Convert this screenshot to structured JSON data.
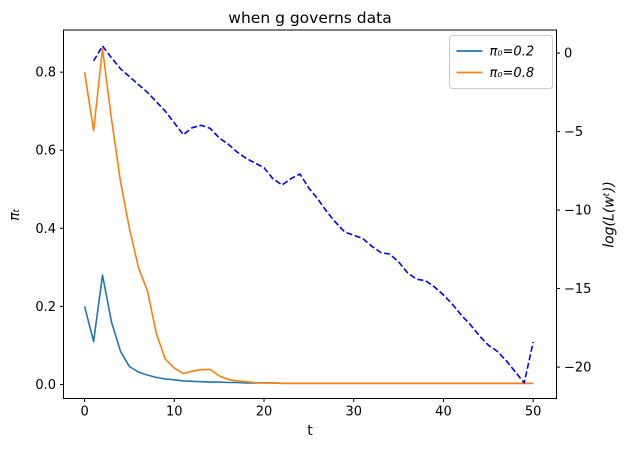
{
  "chart_data": {
    "type": "line",
    "title": "when g governs data",
    "xlabel": "t",
    "ylabel_left": "πₜ",
    "ylabel_right": "log(L(wᵗ))",
    "grid": false,
    "legend_position": "upper right",
    "xlim": [
      -2.35,
      52.6
    ],
    "ylim_left": [
      -0.036,
      0.908
    ],
    "ylim_right": [
      -22.0,
      1.47
    ],
    "x_ticks": {
      "values": [
        0,
        10,
        20,
        30,
        40,
        50
      ],
      "labels": [
        "0",
        "10",
        "20",
        "30",
        "40",
        "50"
      ]
    },
    "y_left_ticks": {
      "values": [
        0.0,
        0.2,
        0.4,
        0.6,
        0.8
      ],
      "labels": [
        "0.0",
        "0.2",
        "0.4",
        "0.6",
        "0.8"
      ]
    },
    "y_right_ticks": {
      "values": [
        0,
        -5,
        -10,
        -15,
        -20
      ],
      "labels": [
        "0",
        "−5",
        "−10",
        "−15",
        "−20"
      ]
    },
    "colors": {
      "c0_blue": "#1f77b4",
      "c1_orange": "#ff7f0e",
      "dashed_blue": "#0000ff",
      "legend_border": "#cccccc",
      "axis": "#000000"
    },
    "series": [
      {
        "id": "pi0-02",
        "name": "π₀=0.2",
        "axis": "left",
        "color": "#1f77b4",
        "style": "solid",
        "in_legend": true,
        "x": [
          0,
          1,
          2,
          3,
          4,
          5,
          6,
          7,
          8,
          9,
          10,
          11,
          12,
          13,
          14,
          15,
          16,
          17,
          18,
          19,
          20,
          21,
          22,
          23,
          24,
          25,
          26,
          27,
          28,
          29,
          30,
          31,
          32,
          33,
          34,
          35,
          36,
          37,
          38,
          39,
          40,
          41,
          42,
          43,
          44,
          45,
          46,
          47,
          48,
          49,
          50
        ],
        "y": [
          0.2,
          0.11,
          0.28,
          0.16,
          0.085,
          0.046,
          0.032,
          0.024,
          0.018,
          0.014,
          0.012,
          0.009,
          0.008,
          0.007,
          0.006,
          0.006,
          0.005,
          0.005,
          0.004,
          0.004,
          0.004,
          0.004,
          0.003,
          0.003,
          0.003,
          0.003,
          0.003,
          0.003,
          0.003,
          0.003,
          0.003,
          0.003,
          0.003,
          0.003,
          0.003,
          0.003,
          0.003,
          0.003,
          0.003,
          0.003,
          0.003,
          0.003,
          0.003,
          0.003,
          0.003,
          0.003,
          0.003,
          0.003,
          0.003,
          0.003,
          0.003
        ]
      },
      {
        "id": "pi0-08",
        "name": "π₀=0.8",
        "axis": "left",
        "color": "#ff7f0e",
        "style": "solid",
        "in_legend": true,
        "x": [
          0,
          1,
          2,
          3,
          4,
          5,
          6,
          7,
          8,
          9,
          10,
          11,
          12,
          13,
          14,
          15,
          16,
          17,
          18,
          19,
          20,
          21,
          22,
          23,
          24,
          25,
          26,
          27,
          28,
          29,
          30,
          31,
          32,
          33,
          34,
          35,
          36,
          37,
          38,
          39,
          40,
          41,
          42,
          43,
          44,
          45,
          46,
          47,
          48,
          49,
          50
        ],
        "y": [
          0.8,
          0.65,
          0.86,
          0.68,
          0.52,
          0.4,
          0.3,
          0.24,
          0.13,
          0.065,
          0.042,
          0.028,
          0.034,
          0.038,
          0.038,
          0.022,
          0.013,
          0.009,
          0.007,
          0.005,
          0.004,
          0.004,
          0.003,
          0.003,
          0.003,
          0.003,
          0.003,
          0.003,
          0.003,
          0.003,
          0.003,
          0.003,
          0.003,
          0.003,
          0.003,
          0.003,
          0.003,
          0.003,
          0.003,
          0.003,
          0.003,
          0.003,
          0.003,
          0.003,
          0.003,
          0.003,
          0.003,
          0.003,
          0.003,
          0.003,
          0.003
        ]
      },
      {
        "id": "log-likelihood",
        "name": "log(L(wᵗ))",
        "axis": "right",
        "color": "#0000ff",
        "style": "dashed",
        "in_legend": false,
        "x": [
          1,
          2,
          3,
          4,
          5,
          6,
          7,
          8,
          9,
          10,
          11,
          12,
          13,
          14,
          15,
          16,
          17,
          18,
          19,
          20,
          21,
          22,
          23,
          24,
          25,
          26,
          27,
          28,
          29,
          30,
          31,
          32,
          33,
          34,
          35,
          36,
          37,
          38,
          39,
          40,
          41,
          42,
          43,
          44,
          45,
          46,
          47,
          48,
          49,
          50
        ],
        "y": [
          -0.5,
          0.45,
          -0.3,
          -1.0,
          -1.5,
          -2.0,
          -2.5,
          -3.1,
          -3.7,
          -4.45,
          -5.2,
          -4.75,
          -4.6,
          -4.8,
          -5.4,
          -5.8,
          -6.3,
          -6.7,
          -7.0,
          -7.3,
          -8.0,
          -8.4,
          -8.0,
          -7.7,
          -8.6,
          -9.3,
          -10.1,
          -10.8,
          -11.4,
          -11.6,
          -11.8,
          -12.3,
          -12.7,
          -12.8,
          -13.3,
          -14.0,
          -14.4,
          -14.5,
          -14.9,
          -15.4,
          -16.0,
          -16.7,
          -17.3,
          -18.0,
          -18.6,
          -19.0,
          -19.6,
          -20.3,
          -21.0,
          -18.4
        ]
      }
    ]
  }
}
